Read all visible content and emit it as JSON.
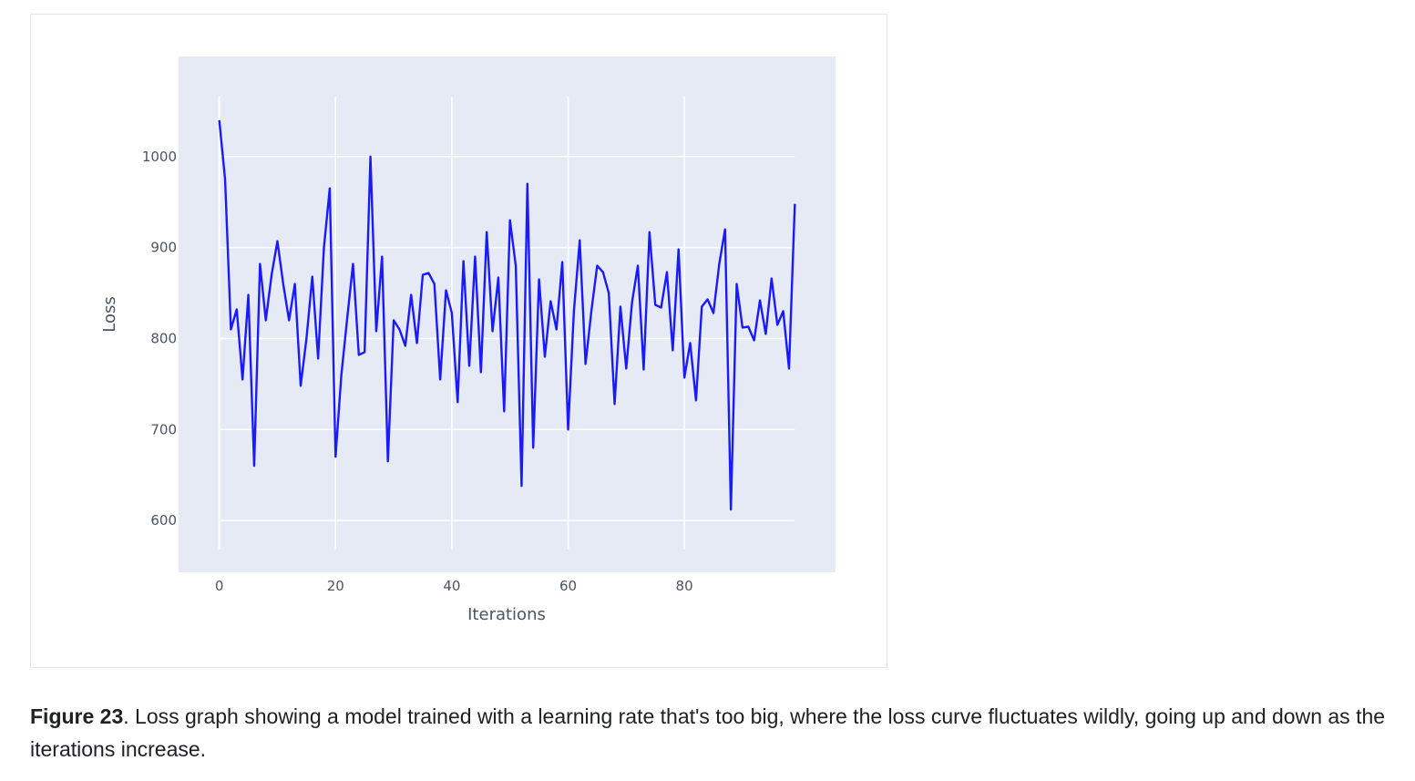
{
  "chart_data": {
    "type": "line",
    "title": "",
    "xlabel": "Iterations",
    "ylabel": "Loss",
    "xlim": [
      -7,
      106
    ],
    "ylim": [
      543,
      1110
    ],
    "grid": true,
    "x_ticks": [
      0,
      20,
      40,
      60,
      80
    ],
    "y_ticks": [
      600,
      700,
      800,
      900,
      1000
    ],
    "colors": {
      "line": "#1a1aff",
      "plot_bg": "#e5eaf4",
      "grid": "#ffffff"
    },
    "series": [
      {
        "values": [
          1040,
          975,
          810,
          832,
          755,
          848,
          660,
          882,
          820,
          870,
          907,
          860,
          820,
          860,
          748,
          800,
          868,
          778,
          900,
          965,
          670,
          760,
          822,
          882,
          782,
          785,
          1000,
          808,
          890,
          665,
          820,
          810,
          792,
          848,
          795,
          870,
          872,
          860,
          755,
          853,
          828,
          730,
          885,
          770,
          890,
          763,
          917,
          808,
          867,
          720,
          930,
          880,
          638,
          970,
          680,
          865,
          780,
          841,
          810,
          884,
          700,
          830,
          908,
          772,
          830,
          880,
          873,
          850,
          728,
          835,
          767,
          840,
          880,
          766,
          917,
          837,
          834,
          873,
          787,
          898,
          757,
          795,
          732,
          835,
          843,
          828,
          882,
          920,
          612,
          860,
          812,
          813,
          798,
          842,
          805,
          866,
          815,
          830,
          767,
          948
        ]
      }
    ]
  },
  "caption": {
    "lead": "Figure 23",
    "text": ". Loss graph showing a model trained with a learning rate that's too big, where the loss curve fluctuates wildly, going up and down as the iterations increase."
  }
}
